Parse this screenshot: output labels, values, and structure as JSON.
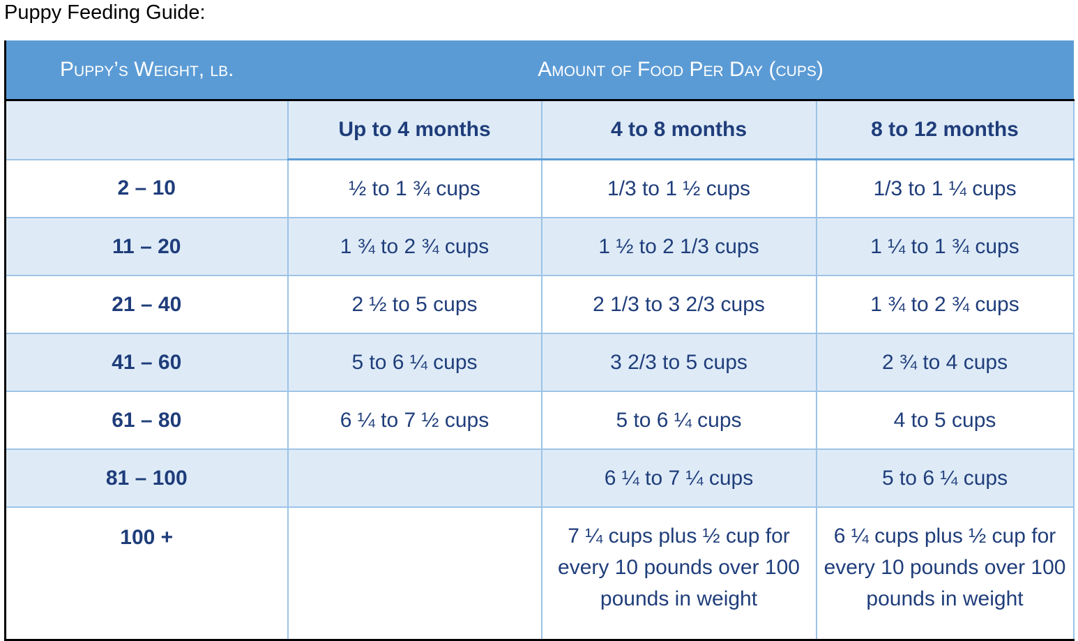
{
  "page_title": "Puppy Feeding Guide:",
  "table": {
    "header": {
      "weight_label": "Puppy’s Weight, lb.",
      "amount_label": "Amount of Food Per Day (cups)"
    },
    "age_columns": [
      "Up to 4 months",
      "4 to 8 months",
      "8 to 12 months"
    ],
    "rows": [
      {
        "weight": "2 – 10",
        "up_to_4": "½ to 1 ¾ cups",
        "m4_to_8": "1/3 to 1 ½ cups",
        "m8_to_12": "1/3 to 1 ¼ cups"
      },
      {
        "weight": "11 – 20",
        "up_to_4": "1 ¾ to 2 ¾ cups",
        "m4_to_8": "1 ½ to 2 1/3 cups",
        "m8_to_12": "1 ¼ to 1 ¾ cups"
      },
      {
        "weight": "21 – 40",
        "up_to_4": "2 ½ to 5 cups",
        "m4_to_8": "2 1/3 to 3 2/3 cups",
        "m8_to_12": "1 ¾ to 2 ¾ cups"
      },
      {
        "weight": "41 – 60",
        "up_to_4": "5 to 6 ¼ cups",
        "m4_to_8": "3 2/3 to 5 cups",
        "m8_to_12": "2 ¾ to 4 cups"
      },
      {
        "weight": "61 – 80",
        "up_to_4": "6 ¼ to 7 ½ cups",
        "m4_to_8": "5 to 6 ¼ cups",
        "m8_to_12": "4 to 5 cups"
      },
      {
        "weight": "81 – 100",
        "up_to_4": "",
        "m4_to_8": "6 ¼ to 7 ¼ cups",
        "m8_to_12": "5 to 6 ¼ cups"
      },
      {
        "weight": "100 +",
        "up_to_4": "",
        "m4_to_8": "7 ¼ cups plus ½ cup for every 10 pounds over 100 pounds in weight",
        "m8_to_12": "6 ¼ cups plus ½ cup for every 10 pounds over 100 pounds in weight"
      }
    ]
  },
  "colors": {
    "header_bg": "#5b9bd5",
    "band_bg": "#deebf7",
    "text": "#1f3d7a",
    "grid": "#9dc3e6"
  }
}
